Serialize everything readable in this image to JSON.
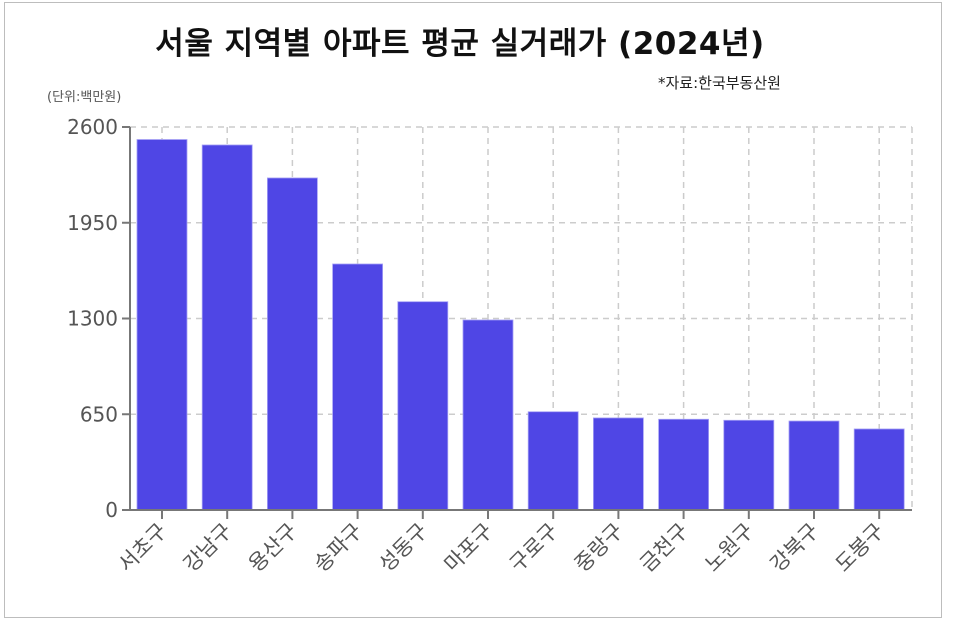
{
  "header": {
    "title": "서울 지역별 아파트 평균 실거래가 (2024년)",
    "source": "*자료:한국부동산원",
    "unit": "(단위:백만원)"
  },
  "colors": {
    "bar": "#4f46e5",
    "bar_edge": "#a5a0f5",
    "grid": "#cccccc",
    "axis": "#777777"
  },
  "chart_data": {
    "type": "bar",
    "title": "서울 지역별 아파트 평균 실거래가 (2024년)",
    "subtitle": "*자료:한국부동산원",
    "xlabel": "",
    "ylabel": "(단위:백만원)",
    "categories": [
      "서초구",
      "강남구",
      "용산구",
      "송파구",
      "성동구",
      "마포구",
      "구로구",
      "중랑구",
      "금천구",
      "노원구",
      "강북구",
      "도봉구"
    ],
    "values": [
      2515,
      2478,
      2254,
      1670,
      1414,
      1290,
      667,
      625,
      616,
      609,
      604,
      550
    ],
    "ylim": [
      0,
      2600
    ],
    "yticks": [
      0,
      650,
      1300,
      1950,
      2600
    ],
    "grid": true,
    "grid_style": "dashed",
    "legend": null,
    "x_label_rotation": -45
  }
}
